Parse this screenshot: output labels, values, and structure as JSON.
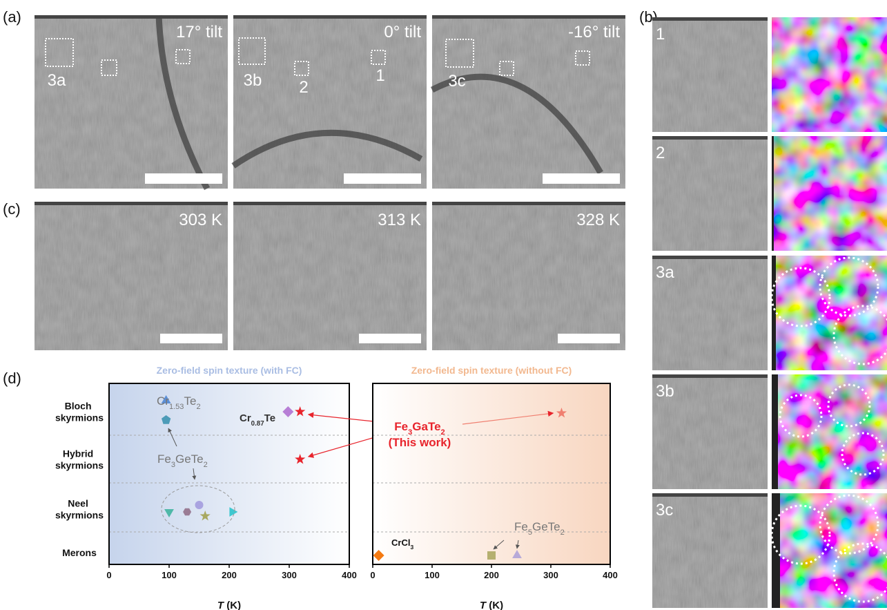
{
  "panel_labels": [
    "(a)",
    "(b)",
    "(c)",
    "(d)"
  ],
  "panel_a": {
    "images": [
      {
        "tilt": "17° tilt",
        "regions": [
          "3a"
        ]
      },
      {
        "tilt": "0° tilt",
        "regions": [
          "3b",
          "2",
          "1"
        ]
      },
      {
        "tilt": "-16° tilt",
        "regions": [
          "3c"
        ]
      }
    ]
  },
  "panel_c": {
    "images": [
      "303 K",
      "313 K",
      "328 K"
    ]
  },
  "panel_b": {
    "rows": [
      "1",
      "2",
      "3a",
      "3b",
      "3c"
    ]
  },
  "highlight": [
    "Fe3GaTe2",
    "(This work)"
  ],
  "chart_data": [
    {
      "type": "scatter",
      "title": "Zero-field spin texture (with FC)",
      "title_color": "#a9bde3",
      "background": "#c6d4ec",
      "categories": [
        "Bloch skyrmions",
        "Hybrid skyrmions",
        "Neel skyrmions",
        "Merons"
      ],
      "xlim": [
        0,
        400
      ],
      "xticks": [
        0,
        100,
        200,
        300,
        400
      ],
      "xlabel": "T (K)",
      "points": [
        {
          "x": 95,
          "y": "Bloch skyrmions",
          "marker": "triangle-up",
          "color": "#5b8fd8"
        },
        {
          "x": 95,
          "y": "Bloch skyrmions",
          "marker": "pentagon",
          "color": "#4c9bb8"
        },
        {
          "x": 298,
          "y": "Bloch skyrmions",
          "marker": "diamond",
          "color": "#b77fd6"
        },
        {
          "x": 318,
          "y": "Bloch skyrmions",
          "marker": "star",
          "color": "#e8242c"
        },
        {
          "x": 318,
          "y": "Hybrid skyrmions",
          "marker": "star",
          "color": "#e8242c"
        },
        {
          "x": 100,
          "y": "Neel skyrmions",
          "marker": "triangle-down",
          "color": "#4fb8a8"
        },
        {
          "x": 130,
          "y": "Neel skyrmions",
          "marker": "hexagon",
          "color": "#9a7c95"
        },
        {
          "x": 150,
          "y": "Neel skyrmions",
          "marker": "circle",
          "color": "#a9a3e0"
        },
        {
          "x": 160,
          "y": "Neel skyrmions",
          "marker": "star",
          "color": "#a8a860"
        },
        {
          "x": 205,
          "y": "Neel skyrmions",
          "marker": "triangle-right",
          "color": "#3fc8d0"
        }
      ],
      "annotations": [
        "Cr1.53Te2",
        "Cr0.87Te",
        "Fe3GeTe2"
      ]
    },
    {
      "type": "scatter",
      "title": "Zero-field spin texture (without FC)",
      "title_color": "#f2b88f",
      "background": "#f8d6c0",
      "xlim": [
        0,
        400
      ],
      "xticks": [
        0,
        100,
        200,
        300,
        400
      ],
      "xlabel": "T (K)",
      "points": [
        {
          "x": 318,
          "y": "Bloch skyrmions",
          "marker": "star",
          "color": "#f07f70"
        },
        {
          "x": 10,
          "y": "Merons",
          "marker": "diamond",
          "color": "#f47a12"
        },
        {
          "x": 200,
          "y": "Merons",
          "marker": "square",
          "color": "#b5b070"
        },
        {
          "x": 243,
          "y": "Merons",
          "marker": "triangle-up",
          "color": "#b7a9d8"
        }
      ],
      "annotations": [
        "CrCl3",
        "Fe5GeTe2"
      ]
    }
  ]
}
